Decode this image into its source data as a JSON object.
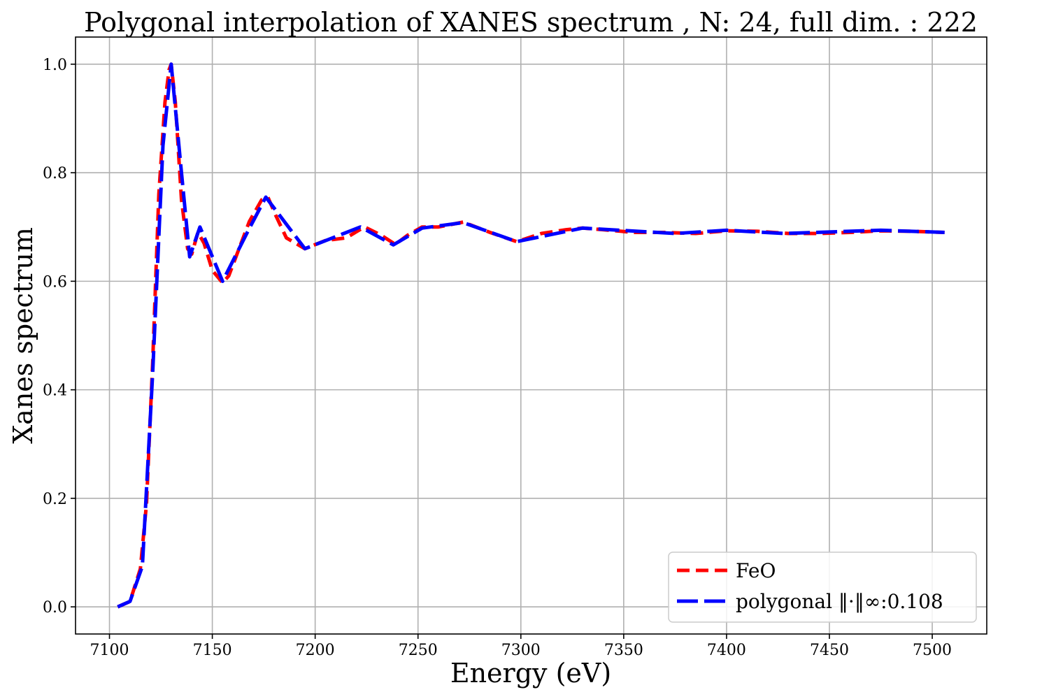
{
  "chart_data": {
    "type": "line",
    "title": "Polygonal interpolation of XANES spectrum , N: 24, full dim. : 222",
    "xlabel": "Energy (eV)",
    "ylabel": "Xanes spectrum",
    "xlim": [
      7083.5,
      7526.5
    ],
    "ylim": [
      -0.05,
      1.05
    ],
    "xticks": [
      7100,
      7150,
      7200,
      7250,
      7300,
      7350,
      7400,
      7450,
      7500
    ],
    "xtick_labels": [
      "7100",
      "7150",
      "7200",
      "7250",
      "7300",
      "7350",
      "7400",
      "7450",
      "7500"
    ],
    "yticks": [
      0.0,
      0.2,
      0.4,
      0.6,
      0.8,
      1.0
    ],
    "ytick_labels": [
      "0.0",
      "0.2",
      "0.4",
      "0.6",
      "0.8",
      "1.0"
    ],
    "grid": true,
    "legend_position": "lower-right",
    "series": [
      {
        "name": "FeO",
        "color": "#ff0000",
        "style": "dashed",
        "x": [
          7104,
          7110,
          7115,
          7118,
          7121,
          7124,
          7127,
          7129,
          7130,
          7132,
          7135,
          7138,
          7140,
          7143,
          7146,
          7150,
          7155,
          7158,
          7162,
          7168,
          7174,
          7177,
          7181,
          7186,
          7195,
          7205,
          7215,
          7224,
          7232,
          7239,
          7245,
          7252,
          7260,
          7272,
          7285,
          7298,
          7310,
          7322,
          7330,
          7340,
          7355,
          7370,
          7385,
          7400,
          7415,
          7430,
          7445,
          7460,
          7475,
          7490,
          7506
        ],
        "values": [
          0.0,
          0.01,
          0.07,
          0.19,
          0.45,
          0.76,
          0.93,
          0.99,
          1.0,
          0.93,
          0.75,
          0.66,
          0.65,
          0.69,
          0.67,
          0.62,
          0.597,
          0.61,
          0.65,
          0.71,
          0.75,
          0.755,
          0.72,
          0.68,
          0.66,
          0.675,
          0.68,
          0.7,
          0.685,
          0.668,
          0.685,
          0.7,
          0.7,
          0.709,
          0.69,
          0.673,
          0.688,
          0.695,
          0.698,
          0.695,
          0.69,
          0.69,
          0.688,
          0.693,
          0.692,
          0.688,
          0.688,
          0.69,
          0.693,
          0.692,
          0.69
        ]
      },
      {
        "name": "polygonal ‖·‖∞:0.108",
        "color": "#0000ff",
        "style": "dashed",
        "x": [
          7104,
          7110,
          7116,
          7121,
          7126,
          7130,
          7135,
          7139,
          7144,
          7155,
          7167,
          7176,
          7195,
          7222,
          7238,
          7252,
          7272,
          7298,
          7330,
          7375,
          7400,
          7428,
          7475,
          7506
        ],
        "values": [
          0.0,
          0.01,
          0.075,
          0.43,
          0.85,
          1.0,
          0.8,
          0.645,
          0.7,
          0.6,
          0.69,
          0.755,
          0.66,
          0.7,
          0.667,
          0.698,
          0.708,
          0.673,
          0.698,
          0.688,
          0.694,
          0.688,
          0.694,
          0.69
        ]
      }
    ]
  }
}
